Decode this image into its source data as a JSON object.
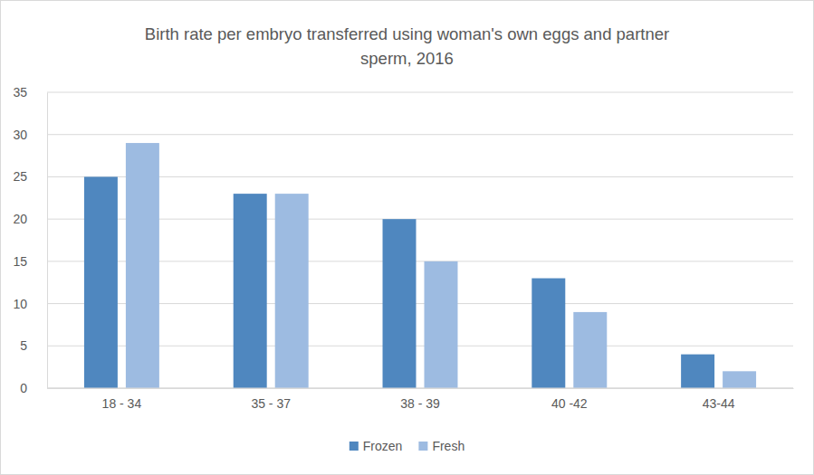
{
  "chart_data": {
    "type": "bar",
    "title": "Birth rate per embryo transferred using woman's own eggs and partner sperm, 2016",
    "categories": [
      "18 - 34",
      "35 - 37",
      "38 - 39",
      "40 -42",
      "43-44"
    ],
    "series": [
      {
        "name": "Frozen",
        "color": "#4f87bf",
        "values": [
          25,
          23,
          20,
          13,
          4
        ]
      },
      {
        "name": "Fresh",
        "color": "#9dbbe1",
        "values": [
          29,
          23,
          15,
          9,
          2
        ]
      }
    ],
    "ylim": [
      0,
      35
    ],
    "yticks": [
      0,
      5,
      10,
      15,
      20,
      25,
      30,
      35
    ],
    "grid": true,
    "legend": "bottom"
  }
}
